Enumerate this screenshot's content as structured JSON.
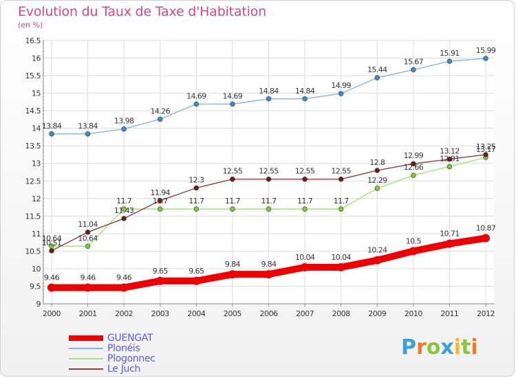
{
  "header": {
    "title": "Evolution du Taux de Taxe d'Habitation",
    "subtitle": "(en %)"
  },
  "logo": {
    "text": "Proxiti",
    "letters": [
      {
        "ch": "P",
        "color": "#3aa0d8"
      },
      {
        "ch": "r",
        "color": "#f07a2a"
      },
      {
        "ch": "o",
        "color": "#8cc43c"
      },
      {
        "ch": "x",
        "color": "#3aa0d8"
      },
      {
        "ch": "i",
        "color": "#f0b82a"
      },
      {
        "ch": "t",
        "color": "#8cc43c"
      },
      {
        "ch": "i",
        "color": "#f07a2a"
      }
    ]
  },
  "chart_data": {
    "type": "line",
    "title": "Evolution du Taux de Taxe d'Habitation",
    "ylabel": "(en %)",
    "xlabel": "",
    "x": [
      "2000",
      "2001",
      "2002",
      "2003",
      "2004",
      "2005",
      "2006",
      "2007",
      "2008",
      "2009",
      "2010",
      "2011",
      "2012"
    ],
    "ylim": [
      9,
      16.5
    ],
    "yticks": [
      "9",
      "9.5",
      "10",
      "10.5",
      "11",
      "11.5",
      "12",
      "12.5",
      "13",
      "13.5",
      "14",
      "14.5",
      "15",
      "15.5",
      "16",
      "16.5"
    ],
    "grid": true,
    "legend": "bottom-left",
    "series": [
      {
        "name": "GUENGAT",
        "color": "#ee0000",
        "marker": "#ee0000",
        "thick": true,
        "values": [
          9.46,
          9.46,
          9.46,
          9.65,
          9.65,
          9.84,
          9.84,
          10.04,
          10.04,
          10.24,
          10.5,
          10.71,
          10.87
        ],
        "labels": [
          "9.46",
          "9.46",
          "9.46",
          "9.65",
          "9.65",
          "9.84",
          "9.84",
          "10.04",
          "10.04",
          "10.24",
          "10.5",
          "10.71",
          "10.87"
        ]
      },
      {
        "name": "Plonéis",
        "color": "#84b4dc",
        "marker": "#3d8ad0",
        "thick": false,
        "values": [
          13.84,
          13.84,
          13.98,
          14.26,
          14.69,
          14.69,
          14.84,
          14.84,
          14.99,
          15.44,
          15.67,
          15.91,
          15.99
        ],
        "labels": [
          "13.84",
          "13.84",
          "13.98",
          "14.26",
          "14.69",
          "14.69",
          "14.84",
          "14.84",
          "14.99",
          "15.44",
          "15.67",
          "15.91",
          "15.99"
        ]
      },
      {
        "name": "Plogonnec",
        "color": "#a8e07c",
        "marker": "#7ccc3a",
        "thick": false,
        "values": [
          10.64,
          10.64,
          11.7,
          11.7,
          11.7,
          11.7,
          11.7,
          11.7,
          11.7,
          12.29,
          12.66,
          12.91,
          13.17
        ],
        "labels": [
          "10.64",
          "10.64",
          "11.7",
          "11.7",
          "11.7",
          "11.7",
          "11.7",
          "11.7",
          "11.7",
          "12.29",
          "12.66",
          "12.91",
          "13.17"
        ]
      },
      {
        "name": "Le Juch",
        "color": "#8c4040",
        "marker": "#6e1e1e",
        "thick": false,
        "values": [
          10.51,
          11.04,
          11.43,
          11.94,
          12.3,
          12.55,
          12.55,
          12.55,
          12.55,
          12.8,
          12.99,
          13.12,
          13.25
        ],
        "labels": [
          "10.51",
          "11.04",
          "11.43",
          "11.94",
          "12.3",
          "12.55",
          "12.55",
          "12.55",
          "12.55",
          "12.8",
          "12.99",
          "13.12",
          "13.25"
        ]
      }
    ]
  }
}
